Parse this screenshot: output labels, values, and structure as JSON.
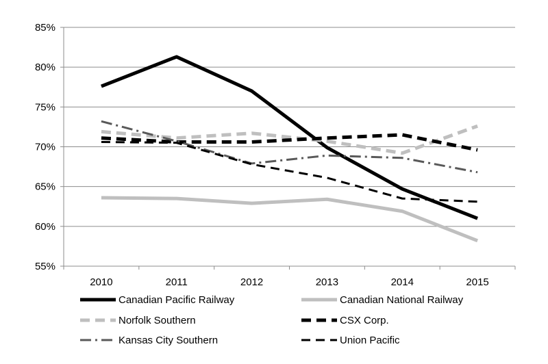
{
  "chart_data": {
    "type": "line",
    "title": "",
    "xlabel": "",
    "ylabel": "",
    "categories": [
      "2010",
      "2011",
      "2012",
      "2013",
      "2014",
      "2015"
    ],
    "ylim": [
      55,
      85
    ],
    "yticks": [
      55,
      60,
      65,
      70,
      75,
      80,
      85
    ],
    "ytick_labels": [
      "55%",
      "60%",
      "65%",
      "70%",
      "75%",
      "80%",
      "85%"
    ],
    "grid": "horizontal",
    "legend_position": "bottom",
    "series": [
      {
        "name": "Canadian Pacific Railway",
        "values": [
          77.6,
          81.3,
          77.0,
          69.9,
          64.7,
          61.0
        ],
        "color": "#000000",
        "style": "solid-thick"
      },
      {
        "name": "Canadian National Railway",
        "values": [
          63.6,
          63.5,
          62.9,
          63.4,
          61.9,
          58.2
        ],
        "color": "#bfbfbf",
        "style": "solid-thick"
      },
      {
        "name": "Norfolk Southern",
        "values": [
          71.9,
          71.1,
          71.7,
          70.7,
          69.2,
          72.6
        ],
        "color": "#bfbfbf",
        "style": "dashed-thick"
      },
      {
        "name": "CSX Corp.",
        "values": [
          71.1,
          70.6,
          70.6,
          71.1,
          71.5,
          69.6
        ],
        "color": "#000000",
        "style": "dashed-thick"
      },
      {
        "name": "Kansas City Southern",
        "values": [
          73.2,
          70.7,
          67.9,
          68.9,
          68.6,
          66.8
        ],
        "color": "#595959",
        "style": "dash-dot"
      },
      {
        "name": "Union Pacific",
        "values": [
          70.6,
          70.5,
          67.8,
          66.1,
          63.5,
          63.1
        ],
        "color": "#000000",
        "style": "dashed"
      }
    ]
  }
}
